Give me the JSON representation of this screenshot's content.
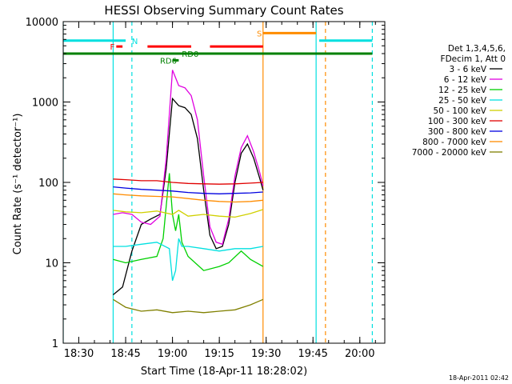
{
  "chart_data": {
    "type": "line",
    "title": "HESSI Observing Summary Count Rates",
    "xlabel": "Start Time (18-Apr-11 18:28:02)",
    "ylabel": "Count Rate (s⁻¹ detector⁻¹)",
    "y_scale": "log",
    "ylim": [
      1,
      10000
    ],
    "xlim": [
      "18:25",
      "20:08"
    ],
    "x_ticks": [
      "18:30",
      "18:45",
      "19:00",
      "19:15",
      "19:30",
      "19:45",
      "20:00"
    ],
    "y_ticks": [
      "1",
      "10",
      "100",
      "1000",
      "10000"
    ],
    "legend": {
      "title_lines": [
        "Det 1,3,4,5,6,",
        "FDecim 1, Att 0"
      ],
      "placement": "right"
    },
    "footer_date": "18-Apr-2011 02:42",
    "series": [
      {
        "name": "3 - 6 keV",
        "color": "#000000",
        "x": [
          "18:41",
          "18:44",
          "18:47",
          "18:50",
          "18:53",
          "18:56",
          "18:58",
          "19:00",
          "19:02",
          "19:04",
          "19:06",
          "19:08",
          "19:10",
          "19:12",
          "19:14",
          "19:16",
          "19:18",
          "19:20",
          "19:22",
          "19:24",
          "19:26",
          "19:28",
          "19:29"
        ],
        "y": [
          4,
          5,
          14,
          30,
          35,
          40,
          150,
          1100,
          900,
          850,
          700,
          350,
          80,
          22,
          15,
          16,
          30,
          100,
          230,
          300,
          200,
          110,
          80
        ]
      },
      {
        "name": "6 - 12 keV",
        "color": "#e000e0",
        "x": [
          "18:41",
          "18:44",
          "18:47",
          "18:50",
          "18:53",
          "18:56",
          "18:58",
          "19:00",
          "19:02",
          "19:04",
          "19:06",
          "19:08",
          "19:10",
          "19:12",
          "19:14",
          "19:16",
          "19:18",
          "19:20",
          "19:22",
          "19:24",
          "19:26",
          "19:28",
          "19:29"
        ],
        "y": [
          40,
          42,
          40,
          32,
          30,
          38,
          200,
          2500,
          1600,
          1500,
          1200,
          600,
          120,
          28,
          18,
          17,
          35,
          120,
          270,
          380,
          240,
          130,
          90
        ]
      },
      {
        "name": "12 - 25 keV",
        "color": "#00d000",
        "x": [
          "18:41",
          "18:45",
          "18:50",
          "18:55",
          "18:57",
          "18:59",
          "19:00",
          "19:01",
          "19:02",
          "19:03",
          "19:05",
          "19:10",
          "19:15",
          "19:18",
          "19:22",
          "19:25",
          "19:29"
        ],
        "y": [
          11,
          10,
          11,
          12,
          20,
          130,
          40,
          25,
          40,
          18,
          12,
          8,
          9,
          10,
          14,
          11,
          9
        ]
      },
      {
        "name": "25 - 50 keV",
        "color": "#00e0e0",
        "x": [
          "18:41",
          "18:45",
          "18:50",
          "18:55",
          "18:59",
          "19:00",
          "19:01",
          "19:02",
          "19:03",
          "19:05",
          "19:10",
          "19:15",
          "19:20",
          "19:25",
          "19:29"
        ],
        "y": [
          16,
          16,
          17,
          18,
          15,
          6,
          8,
          20,
          16,
          16,
          15,
          14,
          15,
          15,
          16
        ]
      },
      {
        "name": "50 - 100 keV",
        "color": "#d0d000",
        "x": [
          "18:41",
          "18:45",
          "18:50",
          "18:55",
          "19:00",
          "19:02",
          "19:05",
          "19:10",
          "19:15",
          "19:20",
          "19:25",
          "19:29"
        ],
        "y": [
          45,
          43,
          42,
          44,
          40,
          45,
          38,
          40,
          38,
          37,
          41,
          46
        ]
      },
      {
        "name": "100 - 300 keV",
        "color": "#e00000",
        "x": [
          "18:41",
          "18:45",
          "18:50",
          "18:55",
          "19:00",
          "19:05",
          "19:10",
          "19:15",
          "19:20",
          "19:25",
          "19:29"
        ],
        "y": [
          110,
          108,
          105,
          105,
          100,
          97,
          96,
          95,
          96,
          98,
          100
        ]
      },
      {
        "name": "300 - 800 keV",
        "color": "#0000e0",
        "x": [
          "18:41",
          "18:45",
          "18:50",
          "18:55",
          "19:00",
          "19:05",
          "19:10",
          "19:15",
          "19:20",
          "19:25",
          "19:29"
        ],
        "y": [
          88,
          85,
          82,
          80,
          78,
          75,
          73,
          72,
          73,
          74,
          76
        ]
      },
      {
        "name": "800 - 7000 keV",
        "color": "#ff8c00",
        "x": [
          "18:41",
          "18:45",
          "18:50",
          "18:55",
          "19:00",
          "19:05",
          "19:10",
          "19:15",
          "19:20",
          "19:25",
          "19:29"
        ],
        "y": [
          72,
          70,
          68,
          67,
          66,
          63,
          60,
          58,
          57,
          58,
          60
        ]
      },
      {
        "name": "7000 - 20000 keV",
        "color": "#808000",
        "x": [
          "18:41",
          "18:45",
          "18:50",
          "18:55",
          "19:00",
          "19:05",
          "19:10",
          "19:15",
          "19:20",
          "19:25",
          "19:29"
        ],
        "y": [
          3.5,
          2.8,
          2.5,
          2.6,
          2.4,
          2.5,
          2.4,
          2.5,
          2.6,
          3.0,
          3.5
        ]
      }
    ],
    "flags": [
      {
        "label": "N",
        "color": "#00e0e0",
        "y": 5800,
        "segments": [
          [
            "18:25",
            "18:45"
          ],
          [
            "19:47",
            "20:04"
          ]
        ],
        "label_at": "18:47"
      },
      {
        "label": "F",
        "color": "#ff0000",
        "y": 4900,
        "segments": [
          [
            "18:42",
            "18:44"
          ],
          [
            "18:52",
            "19:06"
          ],
          [
            "19:12",
            "19:29"
          ]
        ],
        "label_at": "18:40"
      },
      {
        "label": "S",
        "color": "#ff8c00",
        "y": 7200,
        "segments": [
          [
            "19:29",
            "19:46"
          ]
        ],
        "label_at": "19:27"
      },
      {
        "label": "RD0",
        "color": "#008000",
        "y": 4000,
        "segments": [
          [
            "18:25",
            "20:04"
          ]
        ],
        "label_at": "19:03"
      },
      {
        "label": "RD6",
        "color": "#008000",
        "y": 3300,
        "segments": [
          [
            "19:00",
            "19:02"
          ]
        ],
        "label_at": "18:56"
      }
    ],
    "vertical_lines": [
      {
        "x": "18:25",
        "color": "#00e0e0",
        "style": "solid"
      },
      {
        "x": "18:41",
        "color": "#00e0e0",
        "style": "solid"
      },
      {
        "x": "18:47",
        "color": "#00e0e0",
        "style": "dashed"
      },
      {
        "x": "19:29",
        "color": "#ff8c00",
        "style": "solid"
      },
      {
        "x": "19:46",
        "color": "#00e0e0",
        "style": "solid"
      },
      {
        "x": "19:49",
        "color": "#ff8c00",
        "style": "dashed"
      },
      {
        "x": "20:04",
        "color": "#00e0e0",
        "style": "dashed"
      }
    ]
  }
}
